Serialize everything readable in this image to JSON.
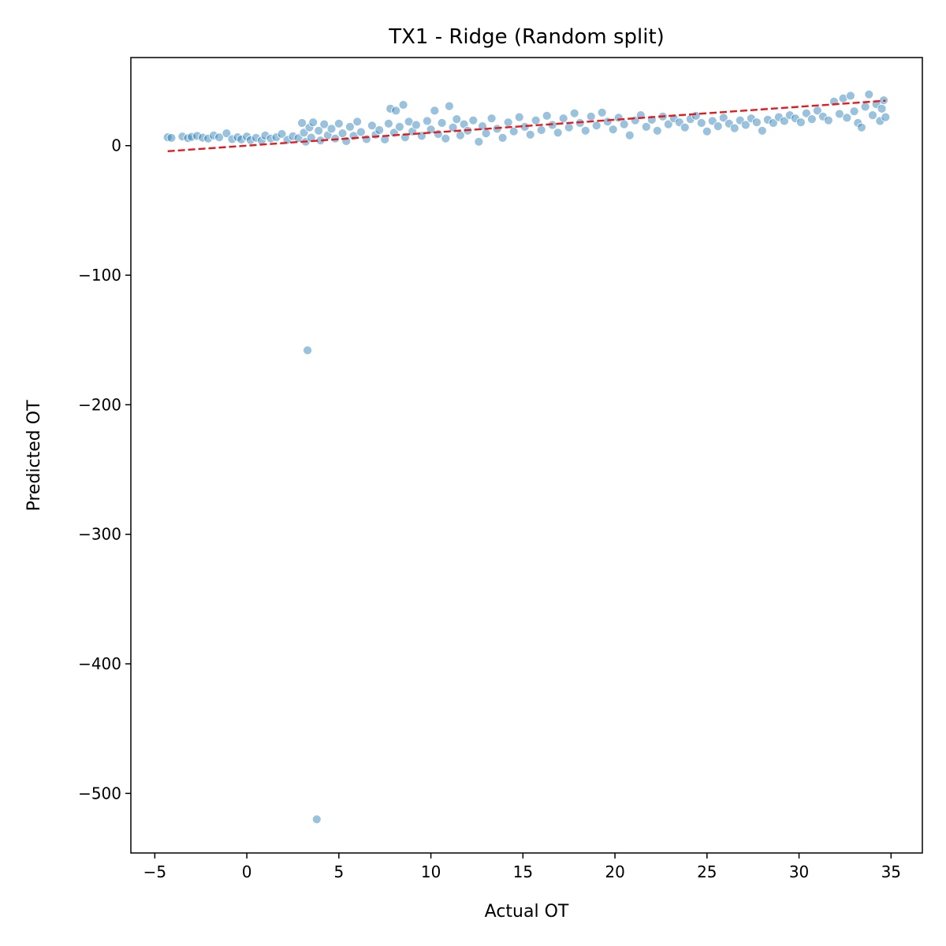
{
  "chart_data": {
    "type": "scatter",
    "title": "TX1 - Ridge (Random split)",
    "xlabel": "Actual OT",
    "ylabel": "Predicted OT",
    "xlim": [
      -6.3,
      36.7
    ],
    "ylim": [
      -546,
      68
    ],
    "xticks": [
      -5,
      0,
      5,
      10,
      15,
      20,
      25,
      30,
      35
    ],
    "yticks": [
      0,
      -100,
      -200,
      -300,
      -400,
      -500
    ],
    "xtick_labels": [
      "−5",
      "0",
      "5",
      "10",
      "15",
      "20",
      "25",
      "30",
      "35"
    ],
    "ytick_labels": [
      "0",
      "−100",
      "−200",
      "−300",
      "−400",
      "−500"
    ],
    "grid": false,
    "point_color": "#1f77b4",
    "point_alpha": 0.45,
    "reference_line": {
      "color": "#e41a1c",
      "style": "dashed",
      "x": [
        -4.3,
        34.7
      ],
      "y": [
        -4.3,
        34.7
      ]
    },
    "points": [
      [
        -4.3,
        6.5
      ],
      [
        -4.1,
        6.0
      ],
      [
        -3.5,
        7.0
      ],
      [
        -3.2,
        5.8
      ],
      [
        -3.0,
        6.8
      ],
      [
        -2.7,
        7.5
      ],
      [
        -2.4,
        6.2
      ],
      [
        -2.1,
        5.5
      ],
      [
        -1.8,
        7.8
      ],
      [
        -1.5,
        6.4
      ],
      [
        -1.1,
        9.5
      ],
      [
        -0.8,
        5.0
      ],
      [
        -0.5,
        6.5
      ],
      [
        -0.3,
        4.8
      ],
      [
        0.0,
        7.0
      ],
      [
        0.2,
        4.2
      ],
      [
        0.5,
        6.0
      ],
      [
        0.8,
        3.9
      ],
      [
        1.0,
        7.8
      ],
      [
        1.3,
        5.5
      ],
      [
        1.6,
        6.5
      ],
      [
        1.9,
        9.0
      ],
      [
        2.2,
        4.5
      ],
      [
        2.5,
        7.2
      ],
      [
        2.8,
        5.8
      ],
      [
        3.0,
        17.5
      ],
      [
        3.1,
        10.0
      ],
      [
        3.2,
        3.0
      ],
      [
        3.3,
        -158.0
      ],
      [
        3.4,
        14.0
      ],
      [
        3.5,
        6.2
      ],
      [
        3.6,
        18.0
      ],
      [
        3.8,
        -520.0
      ],
      [
        3.9,
        11.5
      ],
      [
        4.0,
        4.0
      ],
      [
        4.2,
        16.5
      ],
      [
        4.4,
        8.0
      ],
      [
        4.6,
        13.0
      ],
      [
        4.8,
        5.5
      ],
      [
        5.0,
        17.0
      ],
      [
        5.2,
        9.5
      ],
      [
        5.4,
        3.5
      ],
      [
        5.6,
        14.5
      ],
      [
        5.8,
        7.5
      ],
      [
        6.0,
        18.5
      ],
      [
        6.2,
        10.5
      ],
      [
        6.5,
        5.0
      ],
      [
        6.8,
        15.5
      ],
      [
        7.0,
        8.5
      ],
      [
        7.2,
        12.0
      ],
      [
        7.5,
        4.8
      ],
      [
        7.7,
        17.0
      ],
      [
        7.8,
        28.5
      ],
      [
        8.0,
        10.0
      ],
      [
        8.1,
        27.0
      ],
      [
        8.3,
        14.5
      ],
      [
        8.5,
        31.5
      ],
      [
        8.6,
        6.5
      ],
      [
        8.8,
        18.5
      ],
      [
        9.0,
        11.0
      ],
      [
        9.2,
        16.0
      ],
      [
        9.5,
        7.5
      ],
      [
        9.8,
        19.0
      ],
      [
        10.0,
        12.5
      ],
      [
        10.2,
        27.0
      ],
      [
        10.4,
        9.0
      ],
      [
        10.6,
        17.5
      ],
      [
        10.8,
        5.5
      ],
      [
        11.0,
        30.5
      ],
      [
        11.2,
        14.0
      ],
      [
        11.4,
        20.5
      ],
      [
        11.6,
        8.0
      ],
      [
        11.8,
        16.5
      ],
      [
        12.0,
        11.5
      ],
      [
        12.3,
        19.5
      ],
      [
        12.6,
        3.0
      ],
      [
        12.8,
        15.0
      ],
      [
        13.0,
        9.5
      ],
      [
        13.3,
        21.0
      ],
      [
        13.6,
        13.0
      ],
      [
        13.9,
        6.0
      ],
      [
        14.2,
        18.0
      ],
      [
        14.5,
        11.0
      ],
      [
        14.8,
        22.0
      ],
      [
        15.1,
        14.5
      ],
      [
        15.4,
        8.5
      ],
      [
        15.7,
        19.5
      ],
      [
        16.0,
        12.0
      ],
      [
        16.3,
        23.0
      ],
      [
        16.6,
        16.0
      ],
      [
        16.9,
        10.0
      ],
      [
        17.2,
        21.0
      ],
      [
        17.5,
        14.0
      ],
      [
        17.8,
        25.0
      ],
      [
        18.1,
        17.5
      ],
      [
        18.4,
        11.5
      ],
      [
        18.7,
        22.5
      ],
      [
        19.0,
        15.5
      ],
      [
        19.3,
        25.5
      ],
      [
        19.6,
        18.5
      ],
      [
        19.9,
        12.5
      ],
      [
        20.2,
        21.5
      ],
      [
        20.5,
        16.5
      ],
      [
        20.8,
        8.0
      ],
      [
        21.1,
        19.5
      ],
      [
        21.4,
        23.5
      ],
      [
        21.7,
        14.5
      ],
      [
        22.0,
        20.0
      ],
      [
        22.3,
        11.5
      ],
      [
        22.6,
        22.5
      ],
      [
        22.9,
        16.5
      ],
      [
        23.2,
        21.0
      ],
      [
        23.5,
        18.0
      ],
      [
        23.8,
        14.0
      ],
      [
        24.1,
        20.5
      ],
      [
        24.4,
        23.0
      ],
      [
        24.7,
        17.5
      ],
      [
        25.0,
        11.0
      ],
      [
        25.3,
        19.0
      ],
      [
        25.6,
        15.0
      ],
      [
        25.9,
        21.5
      ],
      [
        26.2,
        17.0
      ],
      [
        26.5,
        13.5
      ],
      [
        26.8,
        19.5
      ],
      [
        27.1,
        16.0
      ],
      [
        27.4,
        21.0
      ],
      [
        27.7,
        18.0
      ],
      [
        28.0,
        11.5
      ],
      [
        28.3,
        20.0
      ],
      [
        28.6,
        17.5
      ],
      [
        28.9,
        22.0
      ],
      [
        29.2,
        19.0
      ],
      [
        29.5,
        23.5
      ],
      [
        29.8,
        21.0
      ],
      [
        30.1,
        18.0
      ],
      [
        30.4,
        25.0
      ],
      [
        30.7,
        20.5
      ],
      [
        31.0,
        27.0
      ],
      [
        31.3,
        22.5
      ],
      [
        31.6,
        19.5
      ],
      [
        31.9,
        34.0
      ],
      [
        32.2,
        24.5
      ],
      [
        32.4,
        36.5
      ],
      [
        32.6,
        21.5
      ],
      [
        32.8,
        38.5
      ],
      [
        33.0,
        26.5
      ],
      [
        33.2,
        17.5
      ],
      [
        33.4,
        14.0
      ],
      [
        33.6,
        30.0
      ],
      [
        33.8,
        39.5
      ],
      [
        34.0,
        23.5
      ],
      [
        34.2,
        32.0
      ],
      [
        34.4,
        19.0
      ],
      [
        34.5,
        28.5
      ],
      [
        34.6,
        35.0
      ],
      [
        34.7,
        22.0
      ]
    ]
  }
}
